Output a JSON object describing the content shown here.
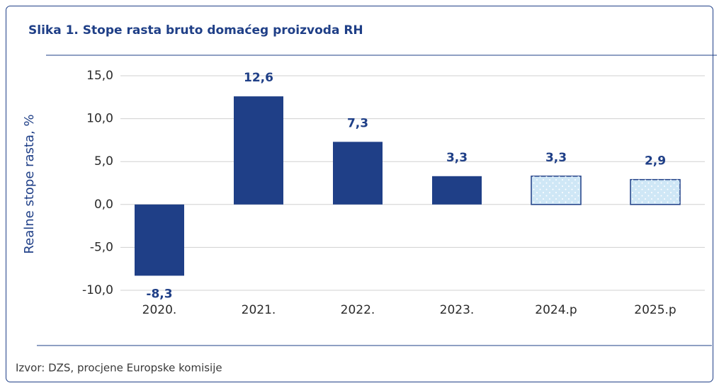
{
  "chart_data": {
    "type": "bar",
    "title": "Slika 1. Stope rasta bruto domaćeg proizvoda RH",
    "ylabel": "Realne stope rasta, %",
    "source": "Izvor: DZS, procjene Europske komisije",
    "categories": [
      "2020.",
      "2021.",
      "2022.",
      "2023.",
      "2024.p",
      "2025.p"
    ],
    "values": [
      -8.3,
      12.6,
      7.3,
      3.3,
      3.3,
      2.9
    ],
    "value_labels": [
      "-8,3",
      "12,6",
      "7,3",
      "3,3",
      "3,3",
      "2,9"
    ],
    "colors": [
      "#1f3f87",
      "#1f3f87",
      "#1f3f87",
      "#1f3f87",
      "#cfe7f6",
      "#cfe7f6"
    ],
    "dotted": [
      false,
      false,
      false,
      false,
      true,
      true
    ],
    "ylim": [
      -10,
      15
    ],
    "yticks": [
      {
        "value": -10,
        "label": "-10,0"
      },
      {
        "value": -5,
        "label": "-5,0"
      },
      {
        "value": 0,
        "label": "0,0"
      },
      {
        "value": 5,
        "label": "5,0"
      },
      {
        "value": 10,
        "label": "10,0"
      },
      {
        "value": 15,
        "label": "15,0"
      }
    ],
    "grid": true
  }
}
